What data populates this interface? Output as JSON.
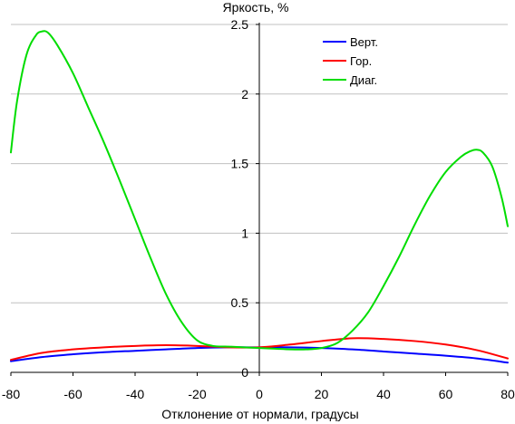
{
  "chart_data": {
    "type": "line",
    "title": "",
    "xlabel": "Отклонение от нормали, градусы",
    "ylabel": "Яркость, %",
    "xlim": [
      -80,
      80
    ],
    "ylim": [
      0,
      2.5
    ],
    "x_ticks": [
      -80,
      -60,
      -40,
      -20,
      0,
      20,
      40,
      60,
      80
    ],
    "y_ticks": [
      {
        "value": 0,
        "label": "0"
      },
      {
        "value": 0.5,
        "label": "0.5"
      },
      {
        "value": 1,
        "label": "1"
      },
      {
        "value": 1.5,
        "label": "1.5"
      },
      {
        "value": 2,
        "label": "2"
      },
      {
        "value": 2.5,
        "label": "2.5"
      }
    ],
    "grid": "horizontal",
    "legend_position": "top-right",
    "series": [
      {
        "name": "Верт.",
        "color": "#0000ff",
        "x": [
          -80,
          -70,
          -60,
          -50,
          -40,
          -30,
          -20,
          -10,
          0,
          10,
          20,
          30,
          40,
          50,
          60,
          70,
          80
        ],
        "y": [
          0.08,
          0.11,
          0.13,
          0.145,
          0.155,
          0.165,
          0.175,
          0.18,
          0.18,
          0.18,
          0.175,
          0.165,
          0.15,
          0.135,
          0.12,
          0.1,
          0.07
        ]
      },
      {
        "name": "Гор.",
        "color": "#ff0000",
        "x": [
          -80,
          -70,
          -60,
          -50,
          -40,
          -30,
          -20,
          -10,
          0,
          10,
          20,
          30,
          40,
          50,
          60,
          70,
          80
        ],
        "y": [
          0.09,
          0.14,
          0.165,
          0.18,
          0.19,
          0.195,
          0.19,
          0.18,
          0.18,
          0.2,
          0.225,
          0.245,
          0.24,
          0.225,
          0.2,
          0.16,
          0.1
        ]
      },
      {
        "name": "Диаг.",
        "color": "#00dd00",
        "x": [
          -80,
          -78,
          -75,
          -72,
          -70,
          -68,
          -65,
          -60,
          -55,
          -50,
          -45,
          -40,
          -35,
          -30,
          -25,
          -20,
          -15,
          -10,
          -5,
          0,
          5,
          10,
          15,
          20,
          25,
          30,
          35,
          40,
          45,
          50,
          55,
          60,
          65,
          68,
          70,
          72,
          75,
          78,
          80
        ],
        "y": [
          1.58,
          1.95,
          2.28,
          2.42,
          2.45,
          2.44,
          2.35,
          2.15,
          1.9,
          1.65,
          1.38,
          1.1,
          0.82,
          0.56,
          0.36,
          0.23,
          0.19,
          0.185,
          0.18,
          0.175,
          0.17,
          0.165,
          0.165,
          0.175,
          0.21,
          0.3,
          0.43,
          0.62,
          0.83,
          1.06,
          1.27,
          1.44,
          1.55,
          1.59,
          1.6,
          1.58,
          1.48,
          1.26,
          1.05
        ]
      }
    ]
  }
}
